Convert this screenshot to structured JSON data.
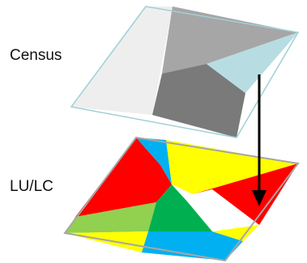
{
  "labels": {
    "census": "Census",
    "lulc": "LU/LC"
  },
  "colors": {
    "census_light": "#eeeeee",
    "census_mid": "#a6a6a6",
    "census_dark": "#7a7a7a",
    "census_cyan": "#b7dde2",
    "census_edge": "#9fd0d6",
    "lulc_red": "#ff0000",
    "lulc_yellow": "#ffff00",
    "lulc_cyan": "#00b0f0",
    "lulc_lightgreen": "#92d050",
    "lulc_green": "#00b050",
    "lulc_white": "#ffffff",
    "lulc_edge": "#a6a6a6",
    "arrow": "#000000"
  }
}
